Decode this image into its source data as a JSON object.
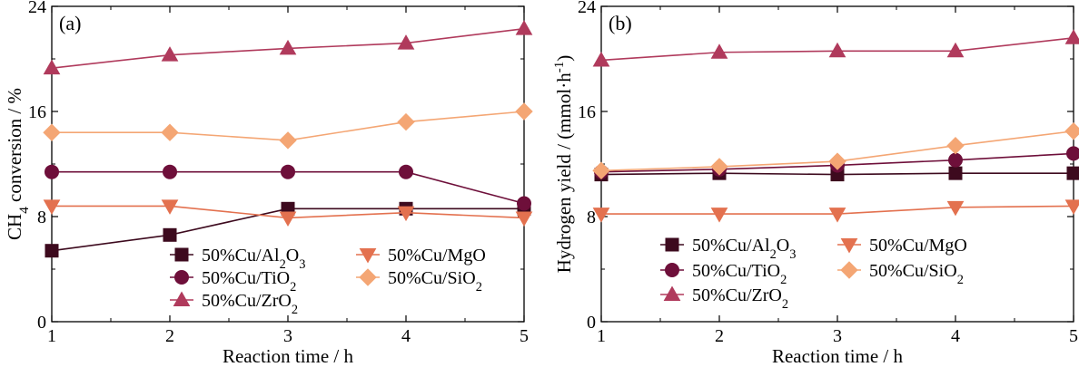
{
  "chart_data": [
    {
      "type": "line",
      "panel_label": "(a)",
      "xlabel": "Reaction time / h",
      "ylabel": "CH4 conversion / %",
      "ylabel_parts": [
        {
          "text": "CH",
          "sub": false
        },
        {
          "text": "4",
          "sub": true
        },
        {
          "text": " conversion / %",
          "sub": false
        }
      ],
      "xlim": [
        1,
        5
      ],
      "ylim": [
        0,
        24
      ],
      "xticks": [
        1,
        2,
        3,
        4,
        5
      ],
      "yticks": [
        0,
        8,
        16,
        24
      ],
      "grid": false,
      "legend_position": "bottom-right",
      "legend_columns": 2,
      "x": [
        1,
        2,
        3,
        4,
        5
      ],
      "series": [
        {
          "name": "50%Cu/Al2O3",
          "name_parts": [
            {
              "text": "50%Cu/Al",
              "sub": false
            },
            {
              "text": "2",
              "sub": true
            },
            {
              "text": "O",
              "sub": false
            },
            {
              "text": "3",
              "sub": true
            }
          ],
          "marker": "square",
          "color": "#3d0a1e",
          "values": [
            5.4,
            6.6,
            8.6,
            8.6,
            8.6
          ]
        },
        {
          "name": "50%Cu/TiO2",
          "name_parts": [
            {
              "text": "50%Cu/TiO",
              "sub": false
            },
            {
              "text": "2",
              "sub": true
            }
          ],
          "marker": "circle",
          "color": "#6e0f3a",
          "values": [
            11.4,
            11.4,
            11.4,
            11.4,
            9.0
          ]
        },
        {
          "name": "50%Cu/ZrO2",
          "name_parts": [
            {
              "text": "50%Cu/ZrO",
              "sub": false
            },
            {
              "text": "2",
              "sub": true
            }
          ],
          "marker": "triangle-up",
          "color": "#b03a5c",
          "values": [
            19.3,
            20.3,
            20.8,
            21.2,
            22.3
          ]
        },
        {
          "name": "50%Cu/MgO",
          "name_parts": [
            {
              "text": "50%Cu/MgO",
              "sub": false
            }
          ],
          "marker": "triangle-down",
          "color": "#e3714f",
          "values": [
            8.8,
            8.8,
            7.9,
            8.3,
            7.9
          ]
        },
        {
          "name": "50%Cu/SiO2",
          "name_parts": [
            {
              "text": "50%Cu/SiO",
              "sub": false
            },
            {
              "text": "2",
              "sub": true
            }
          ],
          "marker": "diamond",
          "color": "#f4a674",
          "values": [
            14.4,
            14.4,
            13.8,
            15.2,
            16.0
          ]
        }
      ]
    },
    {
      "type": "line",
      "panel_label": "(b)",
      "xlabel": "Reaction time / h",
      "ylabel": "Hydrogen yield / (mmol·h-1)",
      "ylabel_parts": [
        {
          "text": "Hydrogen yield / (mmol·h",
          "sub": false
        },
        {
          "text": "-1",
          "sup": true
        },
        {
          "text": ")",
          "sub": false
        }
      ],
      "xlim": [
        1,
        5
      ],
      "ylim": [
        0,
        24
      ],
      "xticks": [
        1,
        2,
        3,
        4,
        5
      ],
      "yticks": [
        0,
        8,
        16,
        24
      ],
      "grid": false,
      "legend_position": "bottom-center",
      "legend_columns": 2,
      "x": [
        1,
        2,
        3,
        4,
        5
      ],
      "series": [
        {
          "name": "50%Cu/Al2O3",
          "name_parts": [
            {
              "text": "50%Cu/Al",
              "sub": false
            },
            {
              "text": "2",
              "sub": true
            },
            {
              "text": "O",
              "sub": false
            },
            {
              "text": "3",
              "sub": true
            }
          ],
          "marker": "square",
          "color": "#3d0a1e",
          "values": [
            11.2,
            11.3,
            11.2,
            11.3,
            11.3
          ]
        },
        {
          "name": "50%Cu/TiO2",
          "name_parts": [
            {
              "text": "50%Cu/TiO",
              "sub": false
            },
            {
              "text": "2",
              "sub": true
            }
          ],
          "marker": "circle",
          "color": "#6e0f3a",
          "values": [
            11.4,
            11.6,
            11.9,
            12.3,
            12.8
          ]
        },
        {
          "name": "50%Cu/ZrO2",
          "name_parts": [
            {
              "text": "50%Cu/ZrO",
              "sub": false
            },
            {
              "text": "2",
              "sub": true
            }
          ],
          "marker": "triangle-up",
          "color": "#b03a5c",
          "values": [
            19.9,
            20.5,
            20.6,
            20.6,
            21.6
          ]
        },
        {
          "name": "50%Cu/MgO",
          "name_parts": [
            {
              "text": "50%Cu/MgO",
              "sub": false
            }
          ],
          "marker": "triangle-down",
          "color": "#e3714f",
          "values": [
            8.2,
            8.2,
            8.2,
            8.7,
            8.8
          ]
        },
        {
          "name": "50%Cu/SiO2",
          "name_parts": [
            {
              "text": "50%Cu/SiO",
              "sub": false
            },
            {
              "text": "2",
              "sub": true
            }
          ],
          "marker": "diamond",
          "color": "#f4a674",
          "values": [
            11.5,
            11.8,
            12.2,
            13.4,
            14.5
          ]
        }
      ]
    }
  ]
}
